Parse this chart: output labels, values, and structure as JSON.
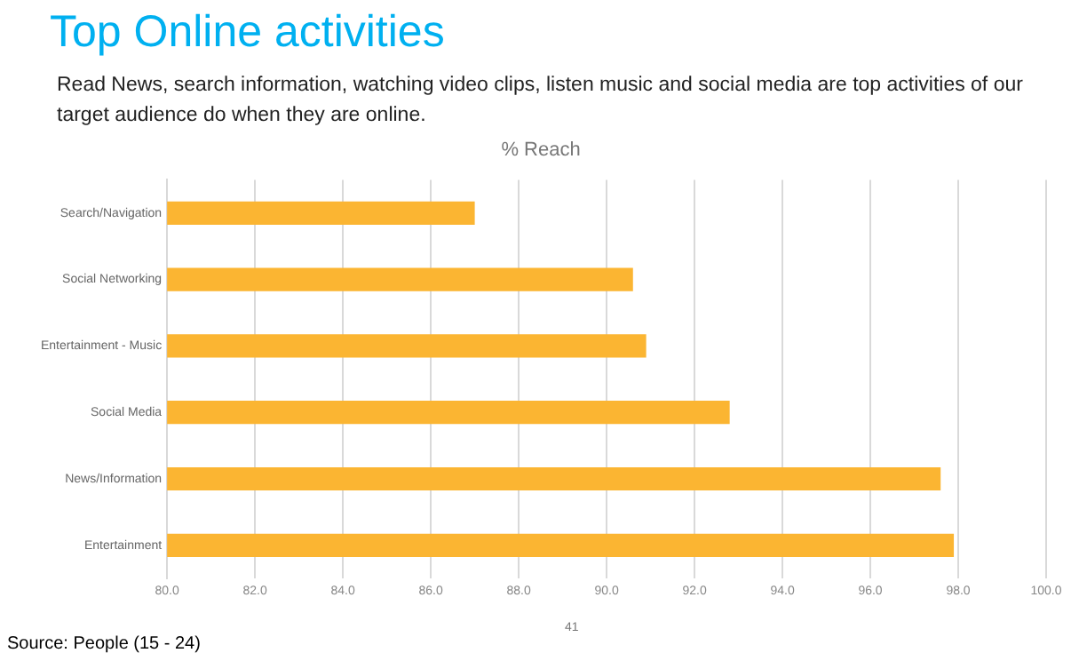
{
  "chart_data": {
    "type": "bar",
    "orientation": "horizontal",
    "title": "Top Online activities",
    "subtitle": "Read News, search information, watching video clips, listen music and social media are top activities of our target audience do when they are online.",
    "xlabel": "% Reach",
    "categories": [
      "Search/Navigation",
      "Social Networking",
      "Entertainment - Music",
      "Social Media",
      "News/Information",
      "Entertainment"
    ],
    "values": [
      87.0,
      90.6,
      90.9,
      92.8,
      97.6,
      97.9
    ],
    "color": "#fbb532",
    "xlim": [
      80,
      100
    ],
    "xticks": [
      {
        "value": 80,
        "label": "80.0"
      },
      {
        "value": 82,
        "label": "82.0"
      },
      {
        "value": 84,
        "label": "84.0"
      },
      {
        "value": 86,
        "label": "86.0"
      },
      {
        "value": 88,
        "label": "88.0"
      },
      {
        "value": 90,
        "label": "90.0"
      },
      {
        "value": 92,
        "label": "92.0"
      },
      {
        "value": 94,
        "label": "94.0"
      },
      {
        "value": 96,
        "label": "96.0"
      },
      {
        "value": 98,
        "label": "98.0"
      },
      {
        "value": 100,
        "label": "100.0"
      }
    ],
    "grid": "x",
    "annotations": [
      "41",
      "Source: People (15 - 24)"
    ]
  }
}
